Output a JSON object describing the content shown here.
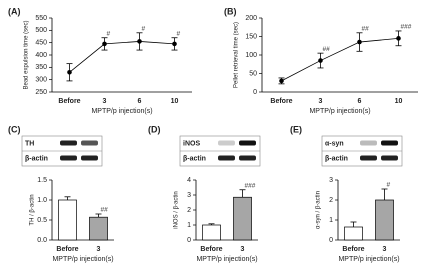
{
  "chart_data": [
    {
      "panel": "(A)",
      "type": "line",
      "categories": [
        "Before",
        "3",
        "6",
        "10"
      ],
      "values": [
        330,
        445,
        455,
        445
      ],
      "errors": [
        35,
        25,
        35,
        25
      ],
      "value_annotations": [
        null,
        "#",
        "#",
        "#"
      ],
      "color": "#000000",
      "xlabel": "MPTP/p injection(s)",
      "ylabel": "Bead expulsion time (sec)",
      "ylim": [
        250,
        550
      ],
      "yticks": [
        250,
        300,
        350,
        400,
        450,
        500,
        550
      ]
    },
    {
      "panel": "(B)",
      "type": "line",
      "categories": [
        "Before",
        "3",
        "6",
        "10"
      ],
      "values": [
        30,
        85,
        135,
        145
      ],
      "errors": [
        8,
        20,
        25,
        20
      ],
      "value_annotations": [
        null,
        "##",
        "##",
        "###"
      ],
      "color": "#000000",
      "xlabel": "MPTP/p injection(s)",
      "ylabel": "Pellet retrieval time (sec)",
      "ylim": [
        0,
        200
      ],
      "yticks": [
        0,
        50,
        100,
        150,
        200
      ]
    },
    {
      "panel": "(C)",
      "type": "bar",
      "blot_labels": [
        "TH",
        "β-actin"
      ],
      "categories": [
        "Before",
        "3"
      ],
      "values": [
        1.0,
        0.57
      ],
      "errors": [
        0.08,
        0.08
      ],
      "value_annotations": [
        null,
        "##"
      ],
      "colors": [
        "#ffffff",
        "#a6a6a6"
      ],
      "xlabel": "MPTP/p injection(s)",
      "ylabel": "TH / β-actin",
      "ylim": [
        0,
        1.5
      ],
      "yticks": [
        {
          "value": 0,
          "label": "0.0"
        },
        {
          "value": 0.5,
          "label": "0.5"
        },
        {
          "value": 1,
          "label": "1.0"
        },
        {
          "value": 1.5,
          "label": "1.5"
        }
      ]
    },
    {
      "panel": "(D)",
      "type": "bar",
      "blot_labels": [
        "iNOS",
        "β-actin"
      ],
      "categories": [
        "Before",
        "3"
      ],
      "values": [
        1.0,
        2.85
      ],
      "errors": [
        0.08,
        0.5
      ],
      "value_annotations": [
        null,
        "###"
      ],
      "colors": [
        "#ffffff",
        "#a6a6a6"
      ],
      "xlabel": "MPTP/p injection(s)",
      "ylabel": "iNOS / β-actin",
      "ylim": [
        0,
        4
      ],
      "yticks": [
        0,
        1,
        2,
        3,
        4
      ]
    },
    {
      "panel": "(E)",
      "type": "bar",
      "blot_labels": [
        "α-syn",
        "β-actin"
      ],
      "categories": [
        "Before",
        "3"
      ],
      "values": [
        0.65,
        2.0
      ],
      "errors": [
        0.25,
        0.55
      ],
      "value_annotations": [
        null,
        "#"
      ],
      "colors": [
        "#ffffff",
        "#a6a6a6"
      ],
      "xlabel": "MPTP/p injection(s)",
      "ylabel": "α-syn / β-actin",
      "ylim": [
        0,
        3
      ],
      "yticks": [
        0,
        1,
        2,
        3
      ]
    }
  ]
}
